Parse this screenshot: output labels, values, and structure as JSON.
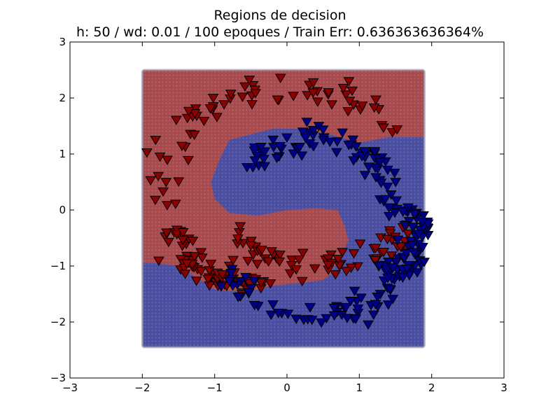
{
  "chart_data": {
    "type": "scatter",
    "title": "Regions de decision",
    "subtitle": "h: 50 / wd: 0.01 / 100 epoques / Train Err: 0.636363636364%",
    "xlim": [
      -3,
      3
    ],
    "ylim": [
      -3,
      3
    ],
    "xticks": [
      -3,
      -2,
      -1,
      0,
      1,
      2,
      3
    ],
    "yticks": [
      -3,
      -2,
      -1,
      0,
      1,
      2,
      3
    ],
    "xtick_labels": [
      "−3",
      "−2",
      "−1",
      "0",
      "1",
      "2",
      "3"
    ],
    "ytick_labels": [
      "−3",
      "−2",
      "−1",
      "0",
      "1",
      "2",
      "3"
    ],
    "xlabel": "",
    "ylabel": "",
    "grid": false,
    "region_extent": {
      "x": [
        -2,
        1.9
      ],
      "y": [
        -2.45,
        2.5
      ]
    },
    "boundary_curve": [
      [
        -2.0,
        -0.95
      ],
      [
        -1.8,
        -0.95
      ],
      [
        -1.5,
        -1.0
      ],
      [
        -1.2,
        -1.25
      ],
      [
        -1.0,
        -1.42
      ],
      [
        -0.8,
        -1.45
      ],
      [
        -0.5,
        -1.45
      ],
      [
        -0.2,
        -1.35
      ],
      [
        0.2,
        -1.3
      ],
      [
        0.5,
        -1.25
      ],
      [
        0.6,
        -1.15
      ],
      [
        0.7,
        -0.9
      ],
      [
        0.85,
        -0.55
      ],
      [
        0.8,
        -0.3
      ],
      [
        0.7,
        0.0
      ],
      [
        0.4,
        0.03
      ],
      [
        0.0,
        0.0
      ],
      [
        -0.4,
        -0.1
      ],
      [
        -0.8,
        -0.05
      ],
      [
        -1.0,
        0.2
      ],
      [
        -1.05,
        0.5
      ],
      [
        -0.95,
        0.85
      ],
      [
        -0.8,
        1.25
      ],
      [
        -0.5,
        1.35
      ],
      [
        -0.2,
        1.45
      ],
      [
        0.2,
        1.45
      ],
      [
        0.6,
        1.35
      ],
      [
        1.0,
        1.2
      ],
      [
        1.4,
        1.3
      ],
      [
        1.9,
        1.3
      ]
    ],
    "classes": [
      {
        "color": "#8b0000",
        "region_color": "#a74a4e",
        "marker": "triangle-down",
        "arcs": [
          {
            "cx": 0.0,
            "cy": 0.5,
            "r": 1.7,
            "a0": 25,
            "a1": 195
          },
          {
            "cx": -0.6,
            "cy": -0.4,
            "r": 0.9,
            "a0": 175,
            "a1": 290
          },
          {
            "cx": 0.4,
            "cy": 0.5,
            "r": 1.5,
            "a0": 220,
            "a1": 330
          }
        ]
      },
      {
        "color": "#00008b",
        "region_color": "#4a4ea0",
        "marker": "triangle-down",
        "arcs": [
          {
            "cx": 0.4,
            "cy": -0.6,
            "r": 1.3,
            "a0": 200,
            "a1": 360
          },
          {
            "cx": 0.4,
            "cy": 0.3,
            "r": 1.0,
            "a0": 0,
            "a1": 160
          },
          {
            "cx": 1.3,
            "cy": -0.5,
            "r": 0.6,
            "a0": -90,
            "a1": 90
          }
        ]
      }
    ],
    "points_per_arc": 70,
    "spread": 0.28
  }
}
